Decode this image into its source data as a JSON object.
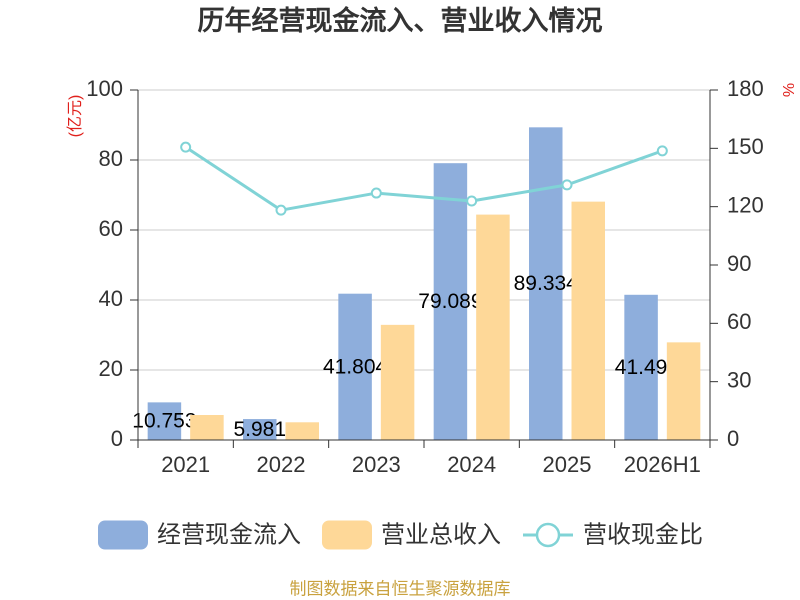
{
  "chart_data": {
    "type": "bar",
    "title": "历年经营现金流入、营业收入情况",
    "categories": [
      "2021",
      "2022",
      "2023",
      "2024",
      "2025",
      "2026H1"
    ],
    "series": [
      {
        "name": "经营现金流入",
        "type": "bar",
        "y_axis": "left",
        "values": [
          10.753,
          5.981,
          41.804,
          79.089,
          89.334,
          41.49
        ],
        "data_labels": true,
        "color": "#8eaedc"
      },
      {
        "name": "营业总收入",
        "type": "bar",
        "y_axis": "left",
        "values": [
          7.14,
          5.06,
          32.9,
          64.4,
          68.1,
          27.9
        ],
        "data_labels": false,
        "color": "#fed898"
      },
      {
        "name": "营收现金比",
        "type": "line",
        "y_axis": "right",
        "values": [
          150.6,
          118.2,
          127.0,
          122.9,
          131.2,
          148.7
        ],
        "data_labels": false,
        "color": "#80d3d6"
      }
    ],
    "y_left": {
      "label": "(亿元)",
      "range": [
        0,
        100
      ],
      "ticks": [
        0,
        20,
        40,
        60,
        80,
        100
      ],
      "label_color": "#e0201c"
    },
    "y_right": {
      "label": "%",
      "range": [
        0,
        180
      ],
      "ticks": [
        0,
        30,
        60,
        90,
        120,
        150,
        180
      ],
      "label_color": "#e0201c"
    },
    "grid": true,
    "legend_position": "bottom"
  },
  "footer": {
    "source": "制图数据来自恒生聚源数据库",
    "color": "#c9a23f"
  }
}
